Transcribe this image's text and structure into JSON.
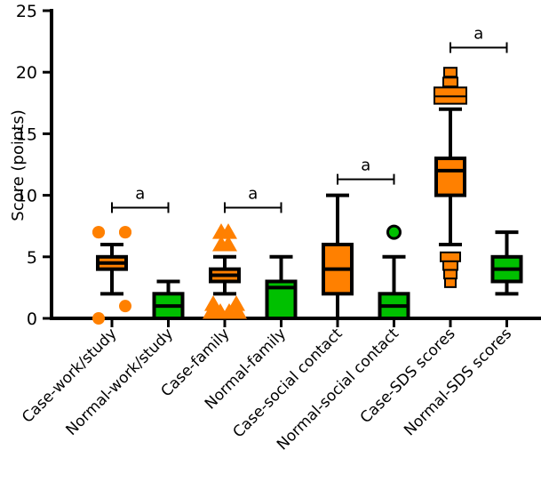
{
  "chart_data": {
    "type": "box",
    "title": "",
    "xlabel": "",
    "ylabel": "Score (points)",
    "ylim": [
      0,
      25
    ],
    "yticks": [
      0,
      5,
      10,
      15,
      20,
      25
    ],
    "grid": false,
    "legend": "none",
    "colors": {
      "case": "#ff8000",
      "normal": "#00c000",
      "outline": "#000000"
    },
    "categories": [
      "Case-work/study",
      "Normal-work/study",
      "Case-family",
      "Normal-family",
      "Case-social contact",
      "Normal-social contact",
      "Case-SDS scores",
      "Normal-SDS scores"
    ],
    "boxes": [
      {
        "group": "case",
        "whisker_low": 2,
        "q1": 4,
        "median": 4.5,
        "q3": 5,
        "whisker_high": 6,
        "outliers": [
          0,
          1,
          7,
          7
        ],
        "marker": "circle"
      },
      {
        "group": "normal",
        "whisker_low": 0,
        "q1": 0,
        "median": 1,
        "q3": 2,
        "whisker_high": 3,
        "outliers": [],
        "marker": "none"
      },
      {
        "group": "case",
        "whisker_low": 2,
        "q1": 3,
        "median": 3.5,
        "q3": 4,
        "whisker_high": 5,
        "outliers": [
          0,
          0,
          0,
          1,
          1,
          6,
          6,
          7,
          7
        ],
        "marker": "triangle"
      },
      {
        "group": "normal",
        "whisker_low": 0,
        "q1": 0,
        "median": 2.5,
        "q3": 3,
        "whisker_high": 5,
        "outliers": [],
        "marker": "none"
      },
      {
        "group": "case",
        "whisker_low": 0,
        "q1": 2,
        "median": 4,
        "q3": 6,
        "whisker_high": 10,
        "outliers": [],
        "marker": "none"
      },
      {
        "group": "normal",
        "whisker_low": 0,
        "q1": 0,
        "median": 1,
        "q3": 2,
        "whisker_high": 5,
        "outliers": [
          7
        ],
        "marker": "circle"
      },
      {
        "group": "case",
        "whisker_low": 6,
        "q1": 10,
        "median": 12,
        "q3": 13,
        "whisker_high": 17,
        "outliers": [
          2.9,
          3.6,
          4.3,
          5,
          17.8,
          18.4,
          19.2,
          20
        ],
        "marker": "square"
      },
      {
        "group": "normal",
        "whisker_low": 2,
        "q1": 3,
        "median": 4,
        "q3": 5,
        "whisker_high": 7,
        "outliers": [],
        "marker": "none"
      }
    ],
    "significance": [
      {
        "from": 0,
        "to": 1,
        "y": 9,
        "label": "a"
      },
      {
        "from": 2,
        "to": 3,
        "y": 9,
        "label": "a"
      },
      {
        "from": 4,
        "to": 5,
        "y": 11.3,
        "label": "a"
      },
      {
        "from": 6,
        "to": 7,
        "y": 22,
        "label": "a"
      }
    ]
  }
}
